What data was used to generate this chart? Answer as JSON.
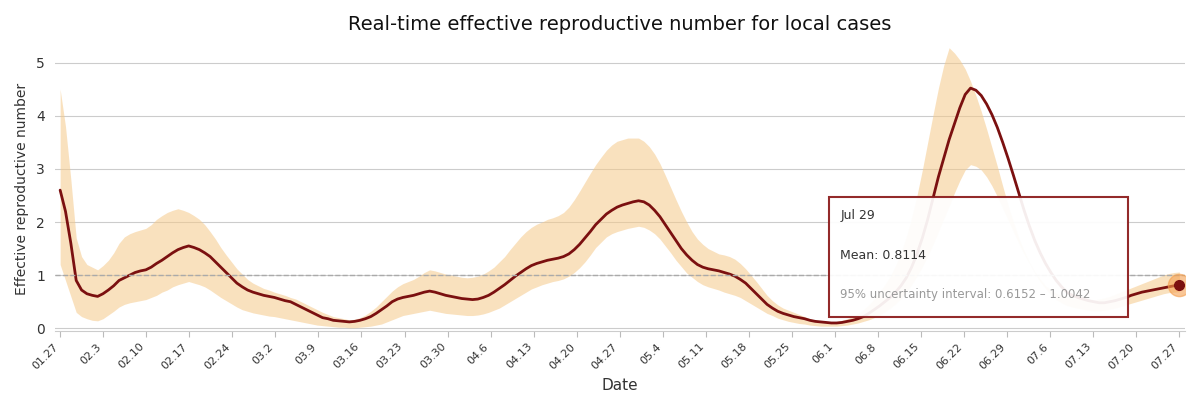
{
  "title": "Real-time effective reproductive number for local cases",
  "xlabel": "Date",
  "ylabel": "Effective reproductive number",
  "line_color": "#7b1010",
  "fill_color": "#f5c98a",
  "fill_alpha": 0.55,
  "dashed_line_y": 1.0,
  "dashed_line_color": "#aaaaaa",
  "ylim": [
    -0.05,
    5.3
  ],
  "background_color": "#ffffff",
  "tooltip_date": "Jul 29",
  "tooltip_mean": "Mean: 0.8114",
  "tooltip_ci": "95% uncertainty interval: 0.6152 – 1.0042",
  "x_tick_labels": [
    "01.27",
    "02.3",
    "02.10",
    "02.17",
    "02.24",
    "03.2",
    "03.9",
    "03.16",
    "03.23",
    "03.30",
    "04.6",
    "04.13",
    "04.20",
    "04.27",
    "05.4",
    "05.11",
    "05.18",
    "05.25",
    "06.1",
    "06.8",
    "06.15",
    "06.22",
    "06.29",
    "07.6",
    "07.13",
    "07.20",
    "07.27"
  ],
  "mean_values": [
    2.6,
    2.2,
    1.6,
    0.9,
    0.72,
    0.65,
    0.62,
    0.6,
    0.65,
    0.72,
    0.8,
    0.9,
    0.95,
    1.0,
    1.05,
    1.08,
    1.1,
    1.15,
    1.22,
    1.28,
    1.35,
    1.42,
    1.48,
    1.52,
    1.55,
    1.52,
    1.48,
    1.42,
    1.35,
    1.25,
    1.15,
    1.05,
    0.95,
    0.85,
    0.78,
    0.72,
    0.68,
    0.65,
    0.62,
    0.6,
    0.58,
    0.55,
    0.52,
    0.5,
    0.45,
    0.4,
    0.35,
    0.3,
    0.25,
    0.2,
    0.18,
    0.15,
    0.14,
    0.13,
    0.12,
    0.13,
    0.15,
    0.18,
    0.22,
    0.28,
    0.35,
    0.42,
    0.5,
    0.55,
    0.58,
    0.6,
    0.62,
    0.65,
    0.68,
    0.7,
    0.68,
    0.65,
    0.62,
    0.6,
    0.58,
    0.56,
    0.55,
    0.54,
    0.55,
    0.58,
    0.62,
    0.68,
    0.75,
    0.82,
    0.9,
    0.98,
    1.05,
    1.12,
    1.18,
    1.22,
    1.25,
    1.28,
    1.3,
    1.32,
    1.35,
    1.4,
    1.48,
    1.58,
    1.7,
    1.82,
    1.95,
    2.05,
    2.15,
    2.22,
    2.28,
    2.32,
    2.35,
    2.38,
    2.4,
    2.38,
    2.32,
    2.22,
    2.1,
    1.95,
    1.8,
    1.65,
    1.5,
    1.38,
    1.28,
    1.2,
    1.15,
    1.12,
    1.1,
    1.08,
    1.05,
    1.02,
    0.98,
    0.92,
    0.85,
    0.75,
    0.65,
    0.55,
    0.45,
    0.38,
    0.32,
    0.28,
    0.25,
    0.22,
    0.2,
    0.18,
    0.15,
    0.13,
    0.12,
    0.11,
    0.1,
    0.1,
    0.11,
    0.13,
    0.15,
    0.18,
    0.22,
    0.28,
    0.35,
    0.42,
    0.5,
    0.58,
    0.68,
    0.8,
    0.95,
    1.15,
    1.4,
    1.7,
    2.05,
    2.45,
    2.85,
    3.2,
    3.55,
    3.85,
    4.15,
    4.4,
    4.52,
    4.48,
    4.38,
    4.22,
    4.02,
    3.78,
    3.5,
    3.2,
    2.88,
    2.55,
    2.22,
    1.92,
    1.65,
    1.42,
    1.22,
    1.05,
    0.9,
    0.78,
    0.68,
    0.62,
    0.58,
    0.55,
    0.52,
    0.5,
    0.48,
    0.48,
    0.5,
    0.52,
    0.55,
    0.58,
    0.62,
    0.65,
    0.68,
    0.7,
    0.72,
    0.74,
    0.76,
    0.78,
    0.8,
    0.82,
    0.84,
    0.85
  ],
  "upper_values": [
    4.5,
    3.8,
    2.8,
    1.7,
    1.35,
    1.2,
    1.15,
    1.1,
    1.18,
    1.28,
    1.42,
    1.6,
    1.72,
    1.78,
    1.82,
    1.85,
    1.88,
    1.95,
    2.05,
    2.12,
    2.18,
    2.22,
    2.25,
    2.22,
    2.18,
    2.12,
    2.05,
    1.95,
    1.82,
    1.68,
    1.52,
    1.38,
    1.25,
    1.12,
    1.02,
    0.92,
    0.85,
    0.8,
    0.75,
    0.72,
    0.68,
    0.65,
    0.62,
    0.58,
    0.55,
    0.5,
    0.45,
    0.4,
    0.35,
    0.3,
    0.26,
    0.22,
    0.2,
    0.18,
    0.16,
    0.17,
    0.2,
    0.25,
    0.32,
    0.4,
    0.5,
    0.6,
    0.7,
    0.78,
    0.84,
    0.88,
    0.92,
    0.98,
    1.05,
    1.1,
    1.08,
    1.05,
    1.02,
    1.0,
    0.98,
    0.96,
    0.95,
    0.96,
    0.98,
    1.02,
    1.08,
    1.15,
    1.25,
    1.35,
    1.48,
    1.6,
    1.72,
    1.82,
    1.9,
    1.96,
    2.0,
    2.05,
    2.08,
    2.12,
    2.18,
    2.28,
    2.42,
    2.58,
    2.75,
    2.92,
    3.08,
    3.22,
    3.35,
    3.45,
    3.52,
    3.55,
    3.58,
    3.58,
    3.58,
    3.52,
    3.42,
    3.28,
    3.1,
    2.88,
    2.65,
    2.42,
    2.2,
    2.0,
    1.82,
    1.68,
    1.58,
    1.5,
    1.45,
    1.4,
    1.38,
    1.35,
    1.3,
    1.22,
    1.12,
    1.0,
    0.88,
    0.75,
    0.62,
    0.52,
    0.44,
    0.38,
    0.34,
    0.3,
    0.26,
    0.22,
    0.18,
    0.15,
    0.13,
    0.12,
    0.12,
    0.13,
    0.15,
    0.18,
    0.22,
    0.28,
    0.35,
    0.44,
    0.55,
    0.68,
    0.82,
    0.98,
    1.18,
    1.42,
    1.72,
    2.08,
    2.5,
    2.98,
    3.5,
    4.02,
    4.52,
    4.95,
    5.28,
    5.18,
    5.05,
    4.88,
    4.65,
    4.38,
    4.08,
    3.75,
    3.4,
    3.05,
    2.68,
    2.32,
    2.0,
    1.7,
    1.45,
    1.24,
    1.06,
    0.92,
    0.8,
    0.72,
    0.66,
    0.62,
    0.59,
    0.57,
    0.55,
    0.54,
    0.53,
    0.53,
    0.55,
    0.57,
    0.6,
    0.64,
    0.68,
    0.72,
    0.76,
    0.8,
    0.84,
    0.88,
    0.92,
    0.96,
    1.0,
    1.03,
    1.05,
    1.06
  ],
  "lower_values": [
    1.2,
    0.9,
    0.6,
    0.3,
    0.22,
    0.18,
    0.15,
    0.14,
    0.18,
    0.25,
    0.32,
    0.4,
    0.45,
    0.48,
    0.5,
    0.52,
    0.54,
    0.58,
    0.62,
    0.68,
    0.72,
    0.78,
    0.82,
    0.85,
    0.88,
    0.85,
    0.82,
    0.78,
    0.72,
    0.65,
    0.58,
    0.52,
    0.46,
    0.4,
    0.35,
    0.32,
    0.29,
    0.27,
    0.25,
    0.23,
    0.22,
    0.2,
    0.18,
    0.16,
    0.14,
    0.12,
    0.1,
    0.08,
    0.06,
    0.05,
    0.04,
    0.03,
    0.02,
    0.02,
    0.01,
    0.01,
    0.02,
    0.03,
    0.04,
    0.06,
    0.08,
    0.12,
    0.16,
    0.2,
    0.24,
    0.26,
    0.28,
    0.3,
    0.32,
    0.34,
    0.32,
    0.3,
    0.28,
    0.27,
    0.26,
    0.25,
    0.24,
    0.24,
    0.25,
    0.27,
    0.3,
    0.34,
    0.38,
    0.44,
    0.5,
    0.56,
    0.62,
    0.68,
    0.74,
    0.78,
    0.82,
    0.85,
    0.88,
    0.9,
    0.93,
    0.98,
    1.05,
    1.14,
    1.25,
    1.38,
    1.52,
    1.62,
    1.72,
    1.78,
    1.82,
    1.85,
    1.88,
    1.9,
    1.92,
    1.9,
    1.85,
    1.78,
    1.68,
    1.55,
    1.42,
    1.28,
    1.16,
    1.04,
    0.96,
    0.88,
    0.82,
    0.78,
    0.75,
    0.72,
    0.68,
    0.65,
    0.62,
    0.58,
    0.52,
    0.46,
    0.4,
    0.34,
    0.28,
    0.24,
    0.19,
    0.16,
    0.13,
    0.11,
    0.09,
    0.08,
    0.06,
    0.05,
    0.04,
    0.04,
    0.04,
    0.04,
    0.05,
    0.06,
    0.08,
    0.1,
    0.13,
    0.16,
    0.2,
    0.25,
    0.31,
    0.38,
    0.46,
    0.56,
    0.68,
    0.82,
    0.98,
    1.16,
    1.36,
    1.58,
    1.82,
    2.06,
    2.3,
    2.55,
    2.78,
    2.98,
    3.08,
    3.05,
    2.98,
    2.85,
    2.68,
    2.48,
    2.26,
    2.04,
    1.82,
    1.6,
    1.4,
    1.22,
    1.04,
    0.88,
    0.75,
    0.64,
    0.54,
    0.48,
    0.43,
    0.4,
    0.38,
    0.36,
    0.34,
    0.33,
    0.33,
    0.34,
    0.36,
    0.38,
    0.41,
    0.44,
    0.47,
    0.5,
    0.53,
    0.56,
    0.59,
    0.62,
    0.65,
    0.67,
    0.68,
    0.69
  ]
}
